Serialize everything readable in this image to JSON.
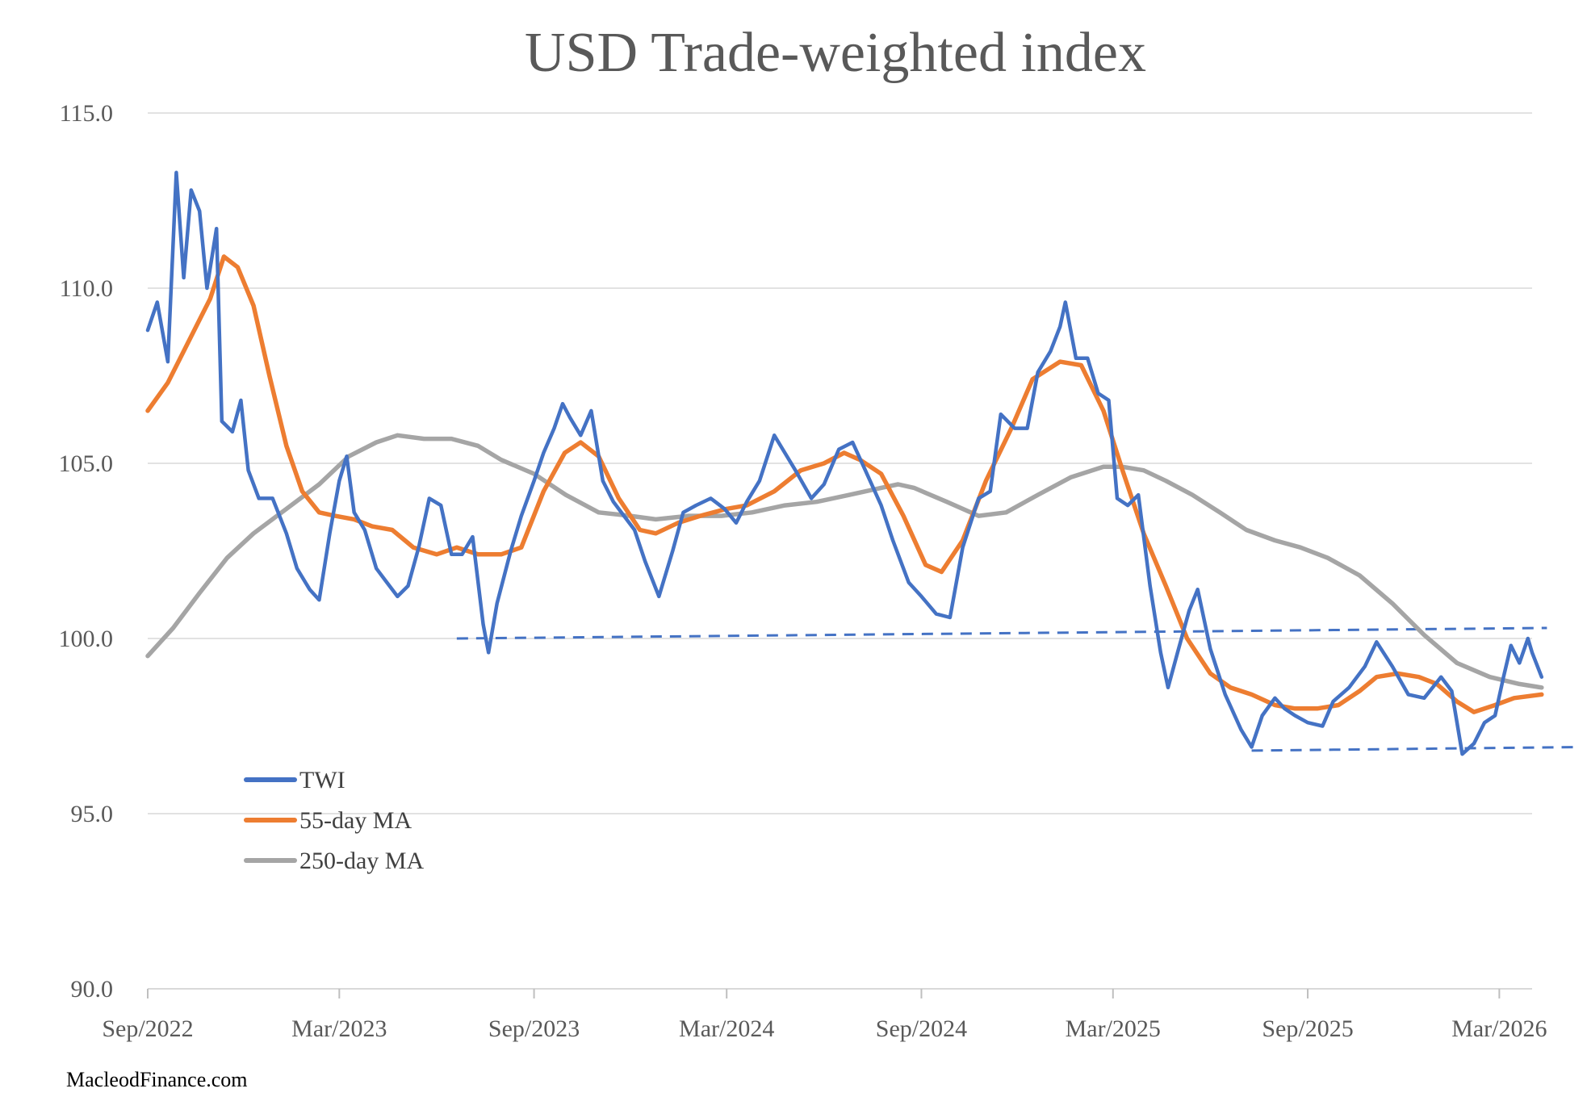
{
  "chart_data": {
    "type": "line",
    "title": "USD Trade-weighted index",
    "xlabel": "",
    "ylabel": "",
    "ylim": [
      90,
      115
    ],
    "yticks": [
      "90.0",
      "95.0",
      "100.0",
      "105.0",
      "110.0",
      "115.0"
    ],
    "xlim": [
      "2022-09",
      "2026-04"
    ],
    "xticks": [
      {
        "label": "Sep/2022",
        "x": "2022-09"
      },
      {
        "label": "Mar/2023",
        "x": "2023-03"
      },
      {
        "label": "Sep/2023",
        "x": "2023-09"
      },
      {
        "label": "Mar/2024",
        "x": "2024-03"
      },
      {
        "label": "Sep/2024",
        "x": "2024-09"
      },
      {
        "label": "Mar/2025",
        "x": "2025-03"
      },
      {
        "label": "Sep/2025",
        "x": "2025-09"
      },
      {
        "label": "Mar/2026",
        "x": "2026-03"
      }
    ],
    "grid": "horizontal",
    "legend_position": "bottom-left inside plot",
    "source": "MacleodFinance.com",
    "series": [
      {
        "name": "TWI",
        "color": "#4472C4",
        "points": [
          [
            "2022-09-01",
            108.8
          ],
          [
            "2022-09-10",
            109.6
          ],
          [
            "2022-09-20",
            107.9
          ],
          [
            "2022-09-28",
            113.3
          ],
          [
            "2022-10-05",
            110.3
          ],
          [
            "2022-10-12",
            112.8
          ],
          [
            "2022-10-20",
            112.2
          ],
          [
            "2022-10-27",
            110.0
          ],
          [
            "2022-11-05",
            111.7
          ],
          [
            "2022-11-10",
            106.2
          ],
          [
            "2022-11-20",
            105.9
          ],
          [
            "2022-11-28",
            106.8
          ],
          [
            "2022-12-05",
            104.8
          ],
          [
            "2022-12-15",
            104.0
          ],
          [
            "2022-12-28",
            104.0
          ],
          [
            "2023-01-10",
            103.0
          ],
          [
            "2023-01-20",
            102.0
          ],
          [
            "2023-02-01",
            101.4
          ],
          [
            "2023-02-10",
            101.1
          ],
          [
            "2023-02-20",
            103.0
          ],
          [
            "2023-03-01",
            104.5
          ],
          [
            "2023-03-08",
            105.2
          ],
          [
            "2023-03-15",
            103.6
          ],
          [
            "2023-03-25",
            103.1
          ],
          [
            "2023-04-05",
            102.0
          ],
          [
            "2023-04-15",
            101.6
          ],
          [
            "2023-04-25",
            101.2
          ],
          [
            "2023-05-05",
            101.5
          ],
          [
            "2023-05-15",
            102.6
          ],
          [
            "2023-05-25",
            104.0
          ],
          [
            "2023-06-05",
            103.8
          ],
          [
            "2023-06-15",
            102.4
          ],
          [
            "2023-06-25",
            102.4
          ],
          [
            "2023-07-05",
            102.9
          ],
          [
            "2023-07-15",
            100.4
          ],
          [
            "2023-07-20",
            99.6
          ],
          [
            "2023-07-28",
            101.0
          ],
          [
            "2023-08-10",
            102.5
          ],
          [
            "2023-08-20",
            103.5
          ],
          [
            "2023-09-01",
            104.5
          ],
          [
            "2023-09-10",
            105.3
          ],
          [
            "2023-09-20",
            106.0
          ],
          [
            "2023-09-28",
            106.7
          ],
          [
            "2023-10-05",
            106.3
          ],
          [
            "2023-10-15",
            105.8
          ],
          [
            "2023-10-25",
            106.5
          ],
          [
            "2023-11-05",
            104.5
          ],
          [
            "2023-11-15",
            103.9
          ],
          [
            "2023-11-25",
            103.5
          ],
          [
            "2023-12-05",
            103.1
          ],
          [
            "2023-12-15",
            102.2
          ],
          [
            "2023-12-28",
            101.2
          ],
          [
            "2024-01-10",
            102.5
          ],
          [
            "2024-01-20",
            103.6
          ],
          [
            "2024-02-01",
            103.8
          ],
          [
            "2024-02-15",
            104.0
          ],
          [
            "2024-02-28",
            103.7
          ],
          [
            "2024-03-10",
            103.3
          ],
          [
            "2024-03-20",
            103.9
          ],
          [
            "2024-04-01",
            104.5
          ],
          [
            "2024-04-15",
            105.8
          ],
          [
            "2024-04-25",
            105.3
          ],
          [
            "2024-05-05",
            104.8
          ],
          [
            "2024-05-20",
            104.0
          ],
          [
            "2024-06-01",
            104.4
          ],
          [
            "2024-06-15",
            105.4
          ],
          [
            "2024-06-28",
            105.6
          ],
          [
            "2024-07-10",
            104.8
          ],
          [
            "2024-07-25",
            103.8
          ],
          [
            "2024-08-05",
            102.8
          ],
          [
            "2024-08-20",
            101.6
          ],
          [
            "2024-09-01",
            101.2
          ],
          [
            "2024-09-15",
            100.7
          ],
          [
            "2024-09-28",
            100.6
          ],
          [
            "2024-10-10",
            102.6
          ],
          [
            "2024-10-25",
            104.0
          ],
          [
            "2024-11-05",
            104.2
          ],
          [
            "2024-11-15",
            106.4
          ],
          [
            "2024-11-28",
            106.0
          ],
          [
            "2024-12-10",
            106.0
          ],
          [
            "2024-12-20",
            107.6
          ],
          [
            "2025-01-01",
            108.2
          ],
          [
            "2025-01-10",
            108.9
          ],
          [
            "2025-01-15",
            109.6
          ],
          [
            "2025-01-25",
            108.0
          ],
          [
            "2025-02-05",
            108.0
          ],
          [
            "2025-02-15",
            107.0
          ],
          [
            "2025-02-25",
            106.8
          ],
          [
            "2025-03-05",
            104.0
          ],
          [
            "2025-03-15",
            103.8
          ],
          [
            "2025-03-25",
            104.1
          ],
          [
            "2025-04-05",
            101.5
          ],
          [
            "2025-04-15",
            99.6
          ],
          [
            "2025-04-22",
            98.6
          ],
          [
            "2025-05-01",
            99.6
          ],
          [
            "2025-05-12",
            100.8
          ],
          [
            "2025-05-20",
            101.4
          ],
          [
            "2025-06-01",
            99.7
          ],
          [
            "2025-06-15",
            98.4
          ],
          [
            "2025-06-30",
            97.4
          ],
          [
            "2025-07-10",
            96.9
          ],
          [
            "2025-07-20",
            97.8
          ],
          [
            "2025-08-01",
            98.3
          ],
          [
            "2025-08-10",
            98.0
          ],
          [
            "2025-08-20",
            97.8
          ],
          [
            "2025-09-01",
            97.6
          ],
          [
            "2025-09-15",
            97.5
          ],
          [
            "2025-09-25",
            98.2
          ],
          [
            "2025-10-10",
            98.6
          ],
          [
            "2025-10-25",
            99.2
          ],
          [
            "2025-11-05",
            99.9
          ],
          [
            "2025-11-20",
            99.2
          ],
          [
            "2025-12-05",
            98.4
          ],
          [
            "2025-12-20",
            98.3
          ],
          [
            "2026-01-05",
            98.9
          ],
          [
            "2026-01-15",
            98.5
          ],
          [
            "2026-01-25",
            96.7
          ],
          [
            "2026-02-05",
            97.0
          ],
          [
            "2026-02-15",
            97.6
          ],
          [
            "2026-02-25",
            97.8
          ],
          [
            "2026-03-05",
            98.9
          ],
          [
            "2026-03-12",
            99.8
          ],
          [
            "2026-03-20",
            99.3
          ],
          [
            "2026-03-28",
            100.0
          ],
          [
            "2026-04-01",
            99.6
          ],
          [
            "2026-04-10",
            98.9
          ]
        ]
      },
      {
        "name": "55-day MA",
        "color": "#ED7D31",
        "points": [
          [
            "2022-09-01",
            106.5
          ],
          [
            "2022-09-20",
            107.3
          ],
          [
            "2022-10-10",
            108.5
          ],
          [
            "2022-10-30",
            109.7
          ],
          [
            "2022-11-12",
            110.9
          ],
          [
            "2022-11-25",
            110.6
          ],
          [
            "2022-12-10",
            109.5
          ],
          [
            "2022-12-25",
            107.5
          ],
          [
            "2023-01-10",
            105.5
          ],
          [
            "2023-01-25",
            104.2
          ],
          [
            "2023-02-10",
            103.6
          ],
          [
            "2023-02-25",
            103.5
          ],
          [
            "2023-03-15",
            103.4
          ],
          [
            "2023-04-01",
            103.2
          ],
          [
            "2023-04-20",
            103.1
          ],
          [
            "2023-05-10",
            102.6
          ],
          [
            "2023-06-01",
            102.4
          ],
          [
            "2023-06-20",
            102.6
          ],
          [
            "2023-07-10",
            102.4
          ],
          [
            "2023-08-01",
            102.4
          ],
          [
            "2023-08-20",
            102.6
          ],
          [
            "2023-09-10",
            104.2
          ],
          [
            "2023-09-30",
            105.3
          ],
          [
            "2023-10-15",
            105.6
          ],
          [
            "2023-11-01",
            105.2
          ],
          [
            "2023-11-20",
            104.0
          ],
          [
            "2023-12-10",
            103.1
          ],
          [
            "2023-12-25",
            103.0
          ],
          [
            "2024-01-15",
            103.3
          ],
          [
            "2024-02-05",
            103.5
          ],
          [
            "2024-03-01",
            103.7
          ],
          [
            "2024-03-20",
            103.8
          ],
          [
            "2024-04-15",
            104.2
          ],
          [
            "2024-05-10",
            104.8
          ],
          [
            "2024-06-01",
            105.0
          ],
          [
            "2024-06-20",
            105.3
          ],
          [
            "2024-07-05",
            105.1
          ],
          [
            "2024-07-25",
            104.7
          ],
          [
            "2024-08-15",
            103.5
          ],
          [
            "2024-09-05",
            102.1
          ],
          [
            "2024-09-20",
            101.9
          ],
          [
            "2024-10-10",
            102.8
          ],
          [
            "2024-11-01",
            104.5
          ],
          [
            "2024-11-25",
            106.0
          ],
          [
            "2024-12-15",
            107.4
          ],
          [
            "2025-01-10",
            107.9
          ],
          [
            "2025-01-30",
            107.8
          ],
          [
            "2025-02-20",
            106.5
          ],
          [
            "2025-03-10",
            104.8
          ],
          [
            "2025-03-30",
            103.0
          ],
          [
            "2025-04-20",
            101.5
          ],
          [
            "2025-05-10",
            100.0
          ],
          [
            "2025-06-01",
            99.0
          ],
          [
            "2025-06-20",
            98.6
          ],
          [
            "2025-07-10",
            98.4
          ],
          [
            "2025-08-01",
            98.1
          ],
          [
            "2025-08-20",
            98.0
          ],
          [
            "2025-09-10",
            98.0
          ],
          [
            "2025-09-30",
            98.1
          ],
          [
            "2025-10-20",
            98.5
          ],
          [
            "2025-11-05",
            98.9
          ],
          [
            "2025-11-25",
            99.0
          ],
          [
            "2025-12-15",
            98.9
          ],
          [
            "2026-01-01",
            98.7
          ],
          [
            "2026-01-20",
            98.2
          ],
          [
            "2026-02-05",
            97.9
          ],
          [
            "2026-02-25",
            98.1
          ],
          [
            "2026-03-15",
            98.3
          ],
          [
            "2026-04-10",
            98.4
          ]
        ]
      },
      {
        "name": "250-day MA",
        "color": "#A5A5A5",
        "points": [
          [
            "2022-09-01",
            99.5
          ],
          [
            "2022-09-25",
            100.3
          ],
          [
            "2022-10-20",
            101.3
          ],
          [
            "2022-11-15",
            102.3
          ],
          [
            "2022-12-10",
            103.0
          ],
          [
            "2023-01-10",
            103.7
          ],
          [
            "2023-02-10",
            104.4
          ],
          [
            "2023-03-10",
            105.2
          ],
          [
            "2023-04-05",
            105.6
          ],
          [
            "2023-04-25",
            105.8
          ],
          [
            "2023-05-20",
            105.7
          ],
          [
            "2023-06-15",
            105.7
          ],
          [
            "2023-07-10",
            105.5
          ],
          [
            "2023-08-01",
            105.1
          ],
          [
            "2023-09-01",
            104.7
          ],
          [
            "2023-10-01",
            104.1
          ],
          [
            "2023-11-01",
            103.6
          ],
          [
            "2023-12-01",
            103.5
          ],
          [
            "2023-12-25",
            103.4
          ],
          [
            "2024-01-25",
            103.5
          ],
          [
            "2024-02-25",
            103.5
          ],
          [
            "2024-03-25",
            103.6
          ],
          [
            "2024-04-25",
            103.8
          ],
          [
            "2024-05-25",
            103.9
          ],
          [
            "2024-06-25",
            104.1
          ],
          [
            "2024-07-25",
            104.3
          ],
          [
            "2024-08-10",
            104.4
          ],
          [
            "2024-08-25",
            104.3
          ],
          [
            "2024-09-25",
            103.9
          ],
          [
            "2024-10-25",
            103.5
          ],
          [
            "2024-11-20",
            103.6
          ],
          [
            "2024-12-20",
            104.1
          ],
          [
            "2025-01-20",
            104.6
          ],
          [
            "2025-02-20",
            104.9
          ],
          [
            "2025-03-10",
            104.9
          ],
          [
            "2025-03-30",
            104.8
          ],
          [
            "2025-04-20",
            104.5
          ],
          [
            "2025-05-15",
            104.1
          ],
          [
            "2025-06-10",
            103.6
          ],
          [
            "2025-07-05",
            103.1
          ],
          [
            "2025-08-01",
            102.8
          ],
          [
            "2025-08-25",
            102.6
          ],
          [
            "2025-09-20",
            102.3
          ],
          [
            "2025-10-20",
            101.8
          ],
          [
            "2025-11-20",
            101.0
          ],
          [
            "2025-12-20",
            100.1
          ],
          [
            "2026-01-20",
            99.3
          ],
          [
            "2026-02-20",
            98.9
          ],
          [
            "2026-03-20",
            98.7
          ],
          [
            "2026-04-10",
            98.6
          ]
        ]
      }
    ],
    "reference_lines": [
      {
        "color": "#4472C4",
        "style": "dashed",
        "from": [
          "2023-06-20",
          100.0
        ],
        "to": [
          "2026-04-15",
          100.3
        ]
      },
      {
        "color": "#4472C4",
        "style": "dashed",
        "from": [
          "2025-07-10",
          96.8
        ],
        "to": [
          "2026-05-15",
          96.9
        ]
      }
    ]
  }
}
